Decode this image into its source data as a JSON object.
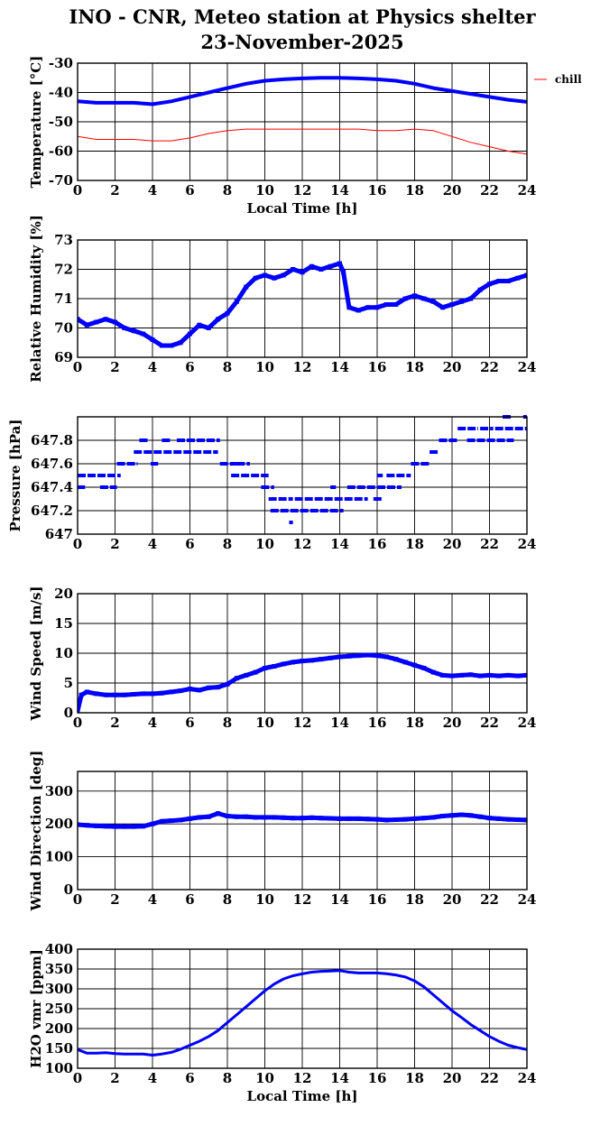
{
  "figure": {
    "title_line1": "INO - CNR, Meteo station at Physics shelter",
    "title_line2": "23-November-2025"
  },
  "colors": {
    "blue": "#0000ff",
    "red": "#ff0000",
    "grid": "#000000"
  },
  "chart_data": [
    {
      "id": "temperature",
      "type": "line",
      "ylabel": "Temperature [°C]",
      "xlabel": "Local Time [h]",
      "xlim": [
        0,
        24
      ],
      "ylim": [
        -70,
        -30
      ],
      "xticks": [
        0,
        2,
        4,
        6,
        8,
        10,
        12,
        14,
        16,
        18,
        20,
        22,
        24
      ],
      "yticks": [
        -70,
        -60,
        -50,
        -40,
        -30
      ],
      "legend": {
        "position": "right-top",
        "entries": [
          "chill"
        ]
      },
      "series": [
        {
          "color": "#0000ff",
          "width": 4,
          "x": [
            0,
            1,
            2,
            3,
            4,
            5,
            6,
            7,
            8,
            9,
            10,
            11,
            12,
            13,
            14,
            15,
            16,
            17,
            18,
            19,
            20,
            21,
            22,
            23,
            24
          ],
          "y": [
            -43,
            -43.5,
            -43.5,
            -43.5,
            -44,
            -43,
            -41.5,
            -40,
            -38.5,
            -37,
            -36,
            -35.5,
            -35.2,
            -35,
            -35,
            -35.2,
            -35.5,
            -36,
            -37,
            -38.5,
            -39.5,
            -40.5,
            -41.5,
            -42.5,
            -43.2
          ]
        },
        {
          "name": "chill",
          "color": "#ff0000",
          "width": 1,
          "x": [
            0,
            1,
            2,
            3,
            4,
            5,
            6,
            7,
            8,
            9,
            10,
            11,
            12,
            13,
            14,
            15,
            16,
            17,
            18,
            19,
            20,
            21,
            22,
            23,
            24
          ],
          "y": [
            -55,
            -56,
            -56,
            -56,
            -56.5,
            -56.5,
            -55.5,
            -54,
            -53,
            -52.5,
            -52.5,
            -52.5,
            -52.5,
            -52.5,
            -52.5,
            -52.5,
            -53,
            -53,
            -52.5,
            -53,
            -55,
            -57,
            -58.5,
            -60,
            -61
          ]
        }
      ]
    },
    {
      "id": "humidity",
      "type": "scatter",
      "ylabel": "Relative Humidity [%]",
      "xlim": [
        0,
        24
      ],
      "ylim": [
        69,
        73
      ],
      "xticks": [
        0,
        2,
        4,
        6,
        8,
        10,
        12,
        14,
        16,
        18,
        20,
        22,
        24
      ],
      "yticks": [
        69,
        70,
        71,
        72,
        73
      ],
      "series": [
        {
          "color": "#0000ff",
          "x": [
            0,
            0.5,
            1,
            1.5,
            2,
            2.5,
            3,
            3.5,
            4,
            4.5,
            5,
            5.5,
            6,
            6.5,
            7,
            7.5,
            8,
            8.5,
            9,
            9.5,
            10,
            10.5,
            11,
            11.5,
            12,
            12.5,
            13,
            13.5,
            14,
            14.2,
            14.5,
            15,
            15.5,
            16,
            16.5,
            17,
            17.5,
            18,
            18.5,
            19,
            19.5,
            20,
            20.5,
            21,
            21.5,
            22,
            22.5,
            23,
            23.5,
            24
          ],
          "y": [
            70.3,
            70.1,
            70.2,
            70.3,
            70.2,
            70.0,
            69.9,
            69.8,
            69.6,
            69.4,
            69.4,
            69.5,
            69.8,
            70.1,
            70.0,
            70.3,
            70.5,
            70.9,
            71.4,
            71.7,
            71.8,
            71.7,
            71.8,
            72.0,
            71.9,
            72.1,
            72.0,
            72.1,
            72.2,
            71.9,
            70.7,
            70.6,
            70.7,
            70.7,
            70.8,
            70.8,
            71.0,
            71.1,
            71.0,
            70.9,
            70.7,
            70.8,
            70.9,
            71.0,
            71.3,
            71.5,
            71.6,
            71.6,
            71.7,
            71.8
          ]
        }
      ]
    },
    {
      "id": "pressure",
      "type": "scatter",
      "ylabel": "Pressure [hPa]",
      "xlim": [
        0,
        24
      ],
      "ylim": [
        647,
        648
      ],
      "xticks": [
        0,
        2,
        4,
        6,
        8,
        10,
        12,
        14,
        16,
        18,
        20,
        22,
        24
      ],
      "yticks": [
        647,
        647.2,
        647.4,
        647.6,
        647.8
      ],
      "segments": [
        {
          "x0": 0,
          "x1": 2.3,
          "y": 647.5
        },
        {
          "x0": 0,
          "x1": 0.4,
          "y": 647.4
        },
        {
          "x0": 1.2,
          "x1": 2.1,
          "y": 647.4
        },
        {
          "x0": 2.1,
          "x1": 3.2,
          "y": 647.6
        },
        {
          "x0": 3.0,
          "x1": 7.5,
          "y": 647.7
        },
        {
          "x0": 3.3,
          "x1": 3.8,
          "y": 647.8
        },
        {
          "x0": 3.9,
          "x1": 4.3,
          "y": 647.6
        },
        {
          "x0": 4.5,
          "x1": 5.0,
          "y": 647.8
        },
        {
          "x0": 5.3,
          "x1": 7.6,
          "y": 647.8
        },
        {
          "x0": 7.6,
          "x1": 8.5,
          "y": 647.6
        },
        {
          "x0": 8.5,
          "x1": 9.2,
          "y": 647.6
        },
        {
          "x0": 8.2,
          "x1": 10.2,
          "y": 647.5
        },
        {
          "x0": 9.8,
          "x1": 10.5,
          "y": 647.4
        },
        {
          "x0": 10.2,
          "x1": 11.5,
          "y": 647.3
        },
        {
          "x0": 10.3,
          "x1": 14.2,
          "y": 647.2
        },
        {
          "x0": 11.6,
          "x1": 15.5,
          "y": 647.3
        },
        {
          "x0": 11.3,
          "x1": 11.5,
          "y": 647.1
        },
        {
          "x0": 13.5,
          "x1": 13.8,
          "y": 647.4
        },
        {
          "x0": 14.4,
          "x1": 16.0,
          "y": 647.4
        },
        {
          "x0": 15.8,
          "x1": 16.3,
          "y": 647.3
        },
        {
          "x0": 16.0,
          "x1": 17.3,
          "y": 647.4
        },
        {
          "x0": 16.0,
          "x1": 16.3,
          "y": 647.5
        },
        {
          "x0": 16.5,
          "x1": 17.8,
          "y": 647.5
        },
        {
          "x0": 17.8,
          "x1": 18.8,
          "y": 647.6
        },
        {
          "x0": 18.8,
          "x1": 19.3,
          "y": 647.7
        },
        {
          "x0": 19.3,
          "x1": 20.3,
          "y": 647.8
        },
        {
          "x0": 20.3,
          "x1": 21.4,
          "y": 647.9
        },
        {
          "x0": 21.5,
          "x1": 22.2,
          "y": 647.9
        },
        {
          "x0": 20.8,
          "x1": 23.3,
          "y": 647.8
        },
        {
          "x0": 22.3,
          "x1": 24,
          "y": 647.9
        },
        {
          "x0": 22.7,
          "x1": 23.2,
          "y": 648.0
        },
        {
          "x0": 23.8,
          "x1": 24,
          "y": 648.0
        }
      ]
    },
    {
      "id": "wind_speed",
      "type": "scatter",
      "ylabel": "Wind Speed [m/s]",
      "xlim": [
        0,
        24
      ],
      "ylim": [
        0,
        20
      ],
      "xticks": [
        0,
        2,
        4,
        6,
        8,
        10,
        12,
        14,
        16,
        18,
        20,
        22,
        24
      ],
      "yticks": [
        0,
        5,
        10,
        15,
        20
      ],
      "series": [
        {
          "color": "#0000ff",
          "x": [
            0,
            0.2,
            0.5,
            1,
            1.5,
            2,
            2.5,
            3,
            3.5,
            4,
            4.5,
            5,
            5.5,
            6,
            6.5,
            7,
            7.5,
            8,
            8.5,
            9,
            9.5,
            10,
            10.5,
            11,
            11.5,
            12,
            12.5,
            13,
            13.5,
            14,
            14.5,
            15,
            15.5,
            16,
            16.5,
            17,
            17.5,
            18,
            18.5,
            19,
            19.5,
            20,
            20.5,
            21,
            21.5,
            22,
            22.5,
            23,
            23.5,
            24
          ],
          "y": [
            0.3,
            3.0,
            3.5,
            3.2,
            3.0,
            3.0,
            3.0,
            3.1,
            3.2,
            3.2,
            3.3,
            3.5,
            3.7,
            4.0,
            3.8,
            4.2,
            4.3,
            4.8,
            5.8,
            6.3,
            6.8,
            7.5,
            7.8,
            8.2,
            8.5,
            8.7,
            8.8,
            9.0,
            9.2,
            9.4,
            9.5,
            9.6,
            9.7,
            9.6,
            9.4,
            9.0,
            8.5,
            8.0,
            7.5,
            6.8,
            6.3,
            6.2,
            6.3,
            6.4,
            6.2,
            6.3,
            6.2,
            6.3,
            6.2,
            6.3
          ]
        }
      ]
    },
    {
      "id": "wind_direction",
      "type": "scatter",
      "ylabel": "Wind Direction [deg]",
      "xlim": [
        0,
        24
      ],
      "ylim": [
        0,
        360
      ],
      "xticks": [
        0,
        2,
        4,
        6,
        8,
        10,
        12,
        14,
        16,
        18,
        20,
        22,
        24
      ],
      "yticks": [
        0,
        100,
        200,
        300
      ],
      "series": [
        {
          "color": "#0000ff",
          "x": [
            0,
            0.5,
            1,
            1.5,
            2,
            2.5,
            3,
            3.5,
            4,
            4.5,
            5,
            5.5,
            6,
            6.5,
            7,
            7.5,
            8,
            8.5,
            9,
            9.5,
            10,
            10.5,
            11,
            11.5,
            12,
            12.5,
            13,
            13.5,
            14,
            14.5,
            15,
            15.5,
            16,
            16.5,
            17,
            17.5,
            18,
            18.5,
            19,
            19.5,
            20,
            20.5,
            21,
            21.5,
            22,
            22.5,
            23,
            23.5,
            24
          ],
          "y": [
            198,
            196,
            194,
            193,
            192,
            192,
            192,
            193,
            200,
            208,
            210,
            212,
            216,
            220,
            222,
            232,
            224,
            222,
            222,
            220,
            220,
            220,
            219,
            218,
            218,
            219,
            218,
            217,
            216,
            216,
            216,
            215,
            214,
            212,
            213,
            214,
            216,
            218,
            220,
            224,
            226,
            228,
            226,
            222,
            218,
            216,
            214,
            213,
            212
          ]
        }
      ]
    },
    {
      "id": "h2o",
      "type": "line",
      "ylabel": "H2O vmr [ppm]",
      "xlabel": "Local Time [h]",
      "xlim": [
        0,
        24
      ],
      "ylim": [
        100,
        400
      ],
      "xticks": [
        0,
        2,
        4,
        6,
        8,
        10,
        12,
        14,
        16,
        18,
        20,
        22,
        24
      ],
      "yticks": [
        100,
        150,
        200,
        250,
        300,
        350,
        400
      ],
      "series": [
        {
          "color": "#0000ff",
          "width": 3,
          "x": [
            0,
            0.5,
            1,
            1.5,
            2,
            2.5,
            3,
            3.5,
            4,
            4.5,
            5,
            5.5,
            6,
            6.5,
            7,
            7.5,
            8,
            8.5,
            9,
            9.5,
            10,
            10.5,
            11,
            11.5,
            12,
            12.5,
            13,
            13.5,
            14,
            14.5,
            15,
            15.5,
            16,
            16.5,
            17,
            17.5,
            18,
            18.5,
            19,
            19.5,
            20,
            20.5,
            21,
            21.5,
            22,
            22.5,
            23,
            23.5,
            24
          ],
          "y": [
            147,
            138,
            138,
            139,
            137,
            136,
            136,
            136,
            133,
            136,
            140,
            148,
            158,
            168,
            180,
            195,
            215,
            235,
            255,
            275,
            295,
            312,
            325,
            333,
            338,
            342,
            344,
            345,
            346,
            342,
            340,
            340,
            340,
            338,
            335,
            330,
            320,
            305,
            285,
            265,
            245,
            228,
            210,
            195,
            180,
            168,
            158,
            152,
            147
          ]
        }
      ]
    }
  ]
}
